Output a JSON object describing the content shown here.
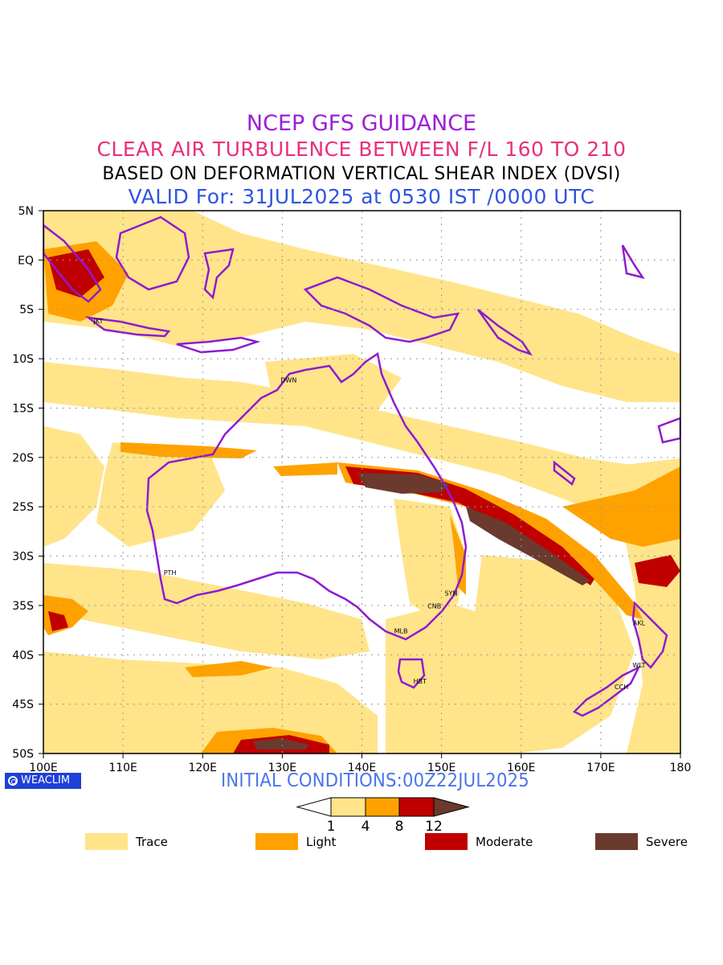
{
  "titles": {
    "line1": "NCEP GFS GUIDANCE",
    "line2": "CLEAR AIR TURBULENCE BETWEEN F/L 160 TO 210",
    "line3": "BASED ON DEFORMATION VERTICAL SHEAR INDEX (DVSI)",
    "line4": "VALID For: 31JUL2025 at 0530 IST /0000 UTC"
  },
  "map": {
    "lat_labels": [
      "5N",
      "EQ",
      "5S",
      "10S",
      "15S",
      "20S",
      "25S",
      "30S",
      "35S",
      "40S",
      "45S",
      "50S"
    ],
    "lon_labels": [
      "100E",
      "110E",
      "120E",
      "130E",
      "140E",
      "150E",
      "160E",
      "170E",
      "180"
    ],
    "stations": [
      {
        "code": "JKT",
        "lon": 106.9,
        "lat": -6.4
      },
      {
        "code": "DWN",
        "lon": 130.8,
        "lat": -12.4
      },
      {
        "code": "PTH",
        "lon": 115.9,
        "lat": -31.9
      },
      {
        "code": "SYN",
        "lon": 151.2,
        "lat": -34.0
      },
      {
        "code": "CNB",
        "lon": 149.1,
        "lat": -35.3
      },
      {
        "code": "MLB",
        "lon": 144.9,
        "lat": -37.8
      },
      {
        "code": "HBT",
        "lon": 147.3,
        "lat": -42.9
      },
      {
        "code": "AKL",
        "lon": 174.8,
        "lat": -37.0
      },
      {
        "code": "WLT",
        "lon": 174.8,
        "lat": -41.3
      },
      {
        "code": "CCH",
        "lon": 172.6,
        "lat": -43.5
      }
    ]
  },
  "badge": "WEACLIM",
  "initial_conditions": "INITIAL CONDITIONS:00Z22JUL2025",
  "colorbar": {
    "thresholds": [
      "1",
      "4",
      "8",
      "12"
    ],
    "colors": [
      "#ffffff",
      "#ffe48a",
      "#ffa200",
      "#c00000",
      "#6b3a2e"
    ]
  },
  "legend": [
    {
      "label": "Trace",
      "color": "#ffe48a"
    },
    {
      "label": "Light",
      "color": "#ffa200"
    },
    {
      "label": "Moderate",
      "color": "#c00000"
    },
    {
      "label": "Severe",
      "color": "#6b3a2e"
    }
  ]
}
